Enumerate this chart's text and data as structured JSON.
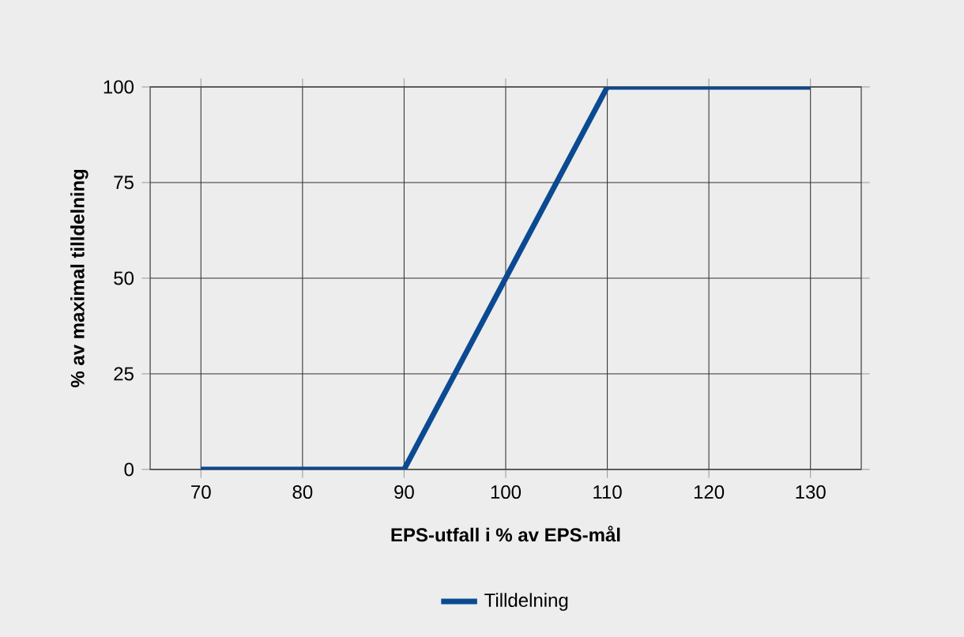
{
  "chart_data": {
    "type": "line",
    "xlabel": "EPS-utfall i % av EPS-mål",
    "ylabel": "% av maximal tilldelning",
    "x": [
      70,
      90,
      110,
      130
    ],
    "series": [
      {
        "name": "Tilldelning",
        "color": "#0b4a92",
        "values": [
          0,
          0,
          100,
          100
        ]
      }
    ],
    "xlim": [
      65,
      135
    ],
    "ylim": [
      0,
      100
    ],
    "xticks": [
      70,
      80,
      90,
      100,
      110,
      120,
      130
    ],
    "yticks": [
      0,
      25,
      50,
      75,
      100
    ],
    "grid": true,
    "legend": "bottom",
    "marker": "none"
  }
}
